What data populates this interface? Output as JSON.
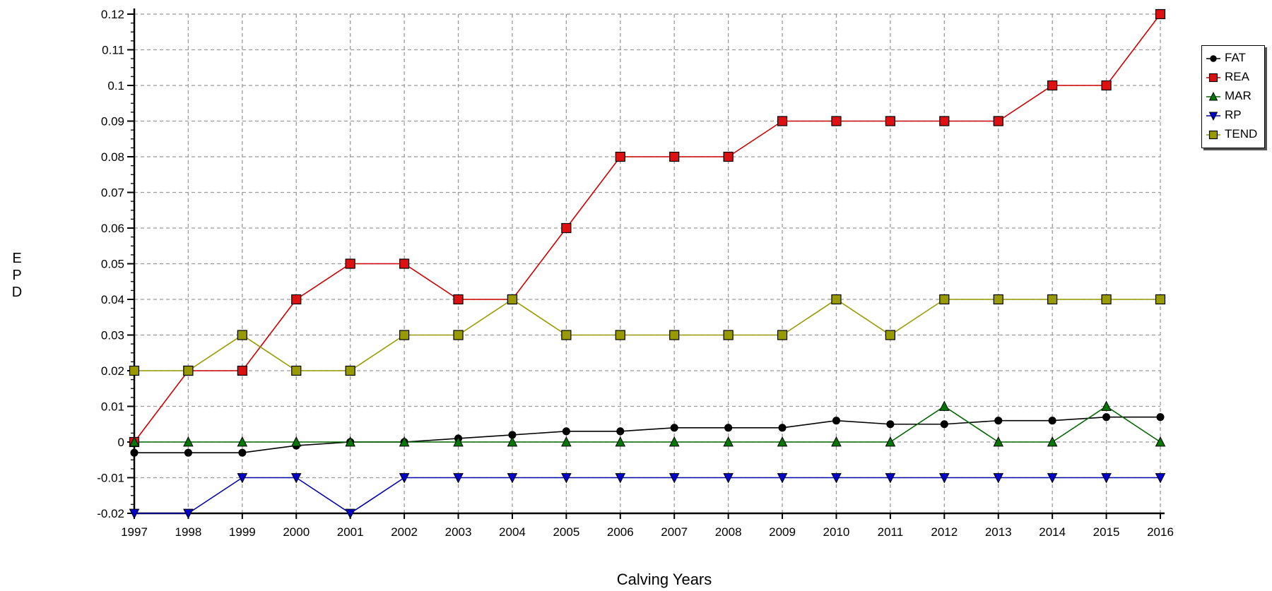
{
  "chart_data": {
    "type": "line",
    "xlabel": "Calving Years",
    "ylabel_letters": [
      "E",
      "P",
      "D"
    ],
    "categories": [
      "1997",
      "1998",
      "1999",
      "2000",
      "2001",
      "2002",
      "2003",
      "2004",
      "2005",
      "2006",
      "2007",
      "2008",
      "2009",
      "2010",
      "2011",
      "2012",
      "2013",
      "2014",
      "2015",
      "2016"
    ],
    "ylim": [
      -0.02,
      0.12
    ],
    "yticks": [
      "0.12",
      "0.11",
      "0.1",
      "0.09",
      "0.08",
      "0.07",
      "0.06",
      "0.05",
      "0.04",
      "0.03",
      "0.02",
      "0.01",
      "0",
      "-0.01",
      "-0.02"
    ],
    "grid": true,
    "legend_position": "right",
    "series": [
      {
        "name": "FAT",
        "color": "#000000",
        "marker": "circle",
        "values": [
          -0.003,
          -0.003,
          -0.003,
          -0.001,
          0,
          0,
          0.001,
          0.002,
          0.003,
          0.003,
          0.004,
          0.004,
          0.004,
          0.006,
          0.005,
          0.005,
          0.006,
          0.006,
          0.007,
          0.007
        ]
      },
      {
        "name": "REA",
        "color": "#cc0000",
        "marker": "square",
        "fill": "#dd1111",
        "values": [
          0,
          0.02,
          0.02,
          0.04,
          0.05,
          0.05,
          0.04,
          0.04,
          0.06,
          0.08,
          0.08,
          0.08,
          0.09,
          0.09,
          0.09,
          0.09,
          0.09,
          0.1,
          0.1,
          0.12
        ]
      },
      {
        "name": "MAR",
        "color": "#006600",
        "marker": "triangle-up",
        "fill": "#007700",
        "values": [
          0,
          0,
          0,
          0,
          0,
          0,
          0,
          0,
          0,
          0,
          0,
          0,
          0,
          0,
          0,
          0.01,
          0,
          0,
          0.01,
          0
        ]
      },
      {
        "name": "RP",
        "color": "#0000aa",
        "marker": "triangle-down",
        "fill": "#0000cc",
        "values": [
          -0.02,
          -0.02,
          -0.01,
          -0.01,
          -0.02,
          -0.01,
          -0.01,
          -0.01,
          -0.01,
          -0.01,
          -0.01,
          -0.01,
          -0.01,
          -0.01,
          -0.01,
          -0.01,
          -0.01,
          -0.01,
          -0.01,
          -0.01
        ]
      },
      {
        "name": "TEND",
        "color": "#999900",
        "marker": "square",
        "fill": "#999900",
        "values": [
          0.02,
          0.02,
          0.03,
          0.02,
          0.02,
          0.03,
          0.03,
          0.04,
          0.03,
          0.03,
          0.03,
          0.03,
          0.03,
          0.04,
          0.03,
          0.04,
          0.04,
          0.04,
          0.04,
          0.04
        ]
      }
    ]
  }
}
